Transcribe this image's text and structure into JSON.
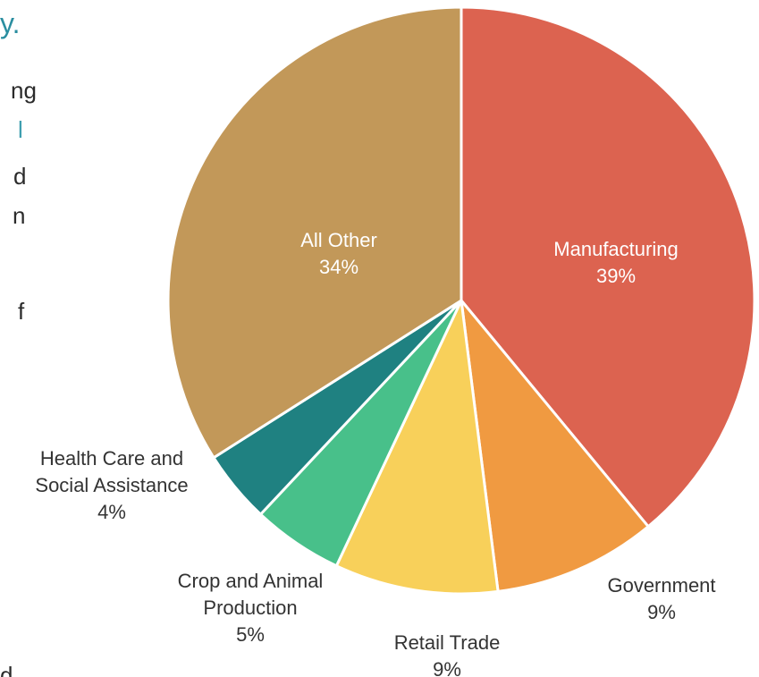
{
  "page": {
    "heading_fragment": "y.",
    "body_fragments": [
      "ng",
      "l",
      "d",
      "n",
      "f",
      "d"
    ]
  },
  "chart_data": {
    "type": "pie",
    "title": "",
    "start_angle_deg": 0,
    "direction": "clockwise",
    "slices": [
      {
        "label": "Manufacturing",
        "value": 39,
        "display": "39%",
        "color": "#dc6350",
        "label_lines": [
          "Manufacturing"
        ],
        "label_inside": true
      },
      {
        "label": "Government",
        "value": 9,
        "display": "9%",
        "color": "#f09a41",
        "label_lines": [
          "Government"
        ],
        "label_inside": false
      },
      {
        "label": "Retail Trade",
        "value": 9,
        "display": "9%",
        "color": "#f8d05a",
        "label_lines": [
          "Retail Trade"
        ],
        "label_inside": false
      },
      {
        "label": "Crop and Animal Production",
        "value": 5,
        "display": "5%",
        "color": "#48c08a",
        "label_lines": [
          "Crop and Animal",
          "Production"
        ],
        "label_inside": false
      },
      {
        "label": "Health Care and Social Assistance",
        "value": 4,
        "display": "4%",
        "color": "#1f8181",
        "label_lines": [
          "Health Care and",
          "Social Assistance"
        ],
        "label_inside": false
      },
      {
        "label": "All Other",
        "value": 34,
        "display": "34%",
        "color": "#c29859",
        "label_lines": [
          "All Other"
        ],
        "label_inside": true
      }
    ]
  }
}
